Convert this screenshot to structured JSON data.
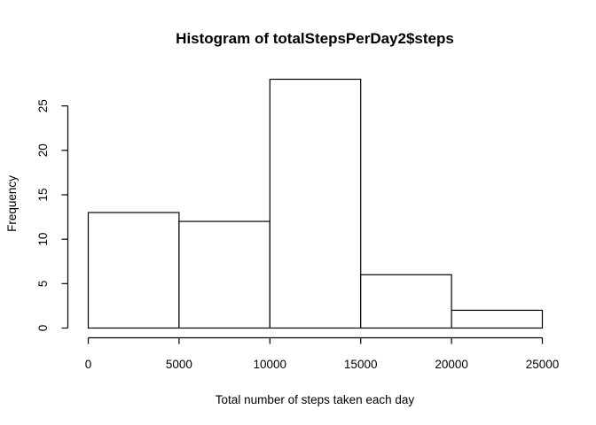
{
  "chart_data": {
    "type": "bar",
    "title": "Histogram of totalStepsPerDay2$steps",
    "xlabel": "Total number of steps taken each day",
    "ylabel": "Frequency",
    "bins": [
      {
        "from": 0,
        "to": 5000,
        "count": 13
      },
      {
        "from": 5000,
        "to": 10000,
        "count": 12
      },
      {
        "from": 10000,
        "to": 15000,
        "count": 28
      },
      {
        "from": 15000,
        "to": 20000,
        "count": 6
      },
      {
        "from": 20000,
        "to": 25000,
        "count": 2
      }
    ],
    "xticks": [
      0,
      5000,
      10000,
      15000,
      20000,
      25000
    ],
    "yticks": [
      0,
      5,
      10,
      15,
      20,
      25
    ],
    "xlim": [
      0,
      25000
    ],
    "ylim": [
      0,
      28
    ],
    "grid": false,
    "legend": "none",
    "bar_fill": "#ffffff",
    "bar_stroke": "#000000"
  }
}
